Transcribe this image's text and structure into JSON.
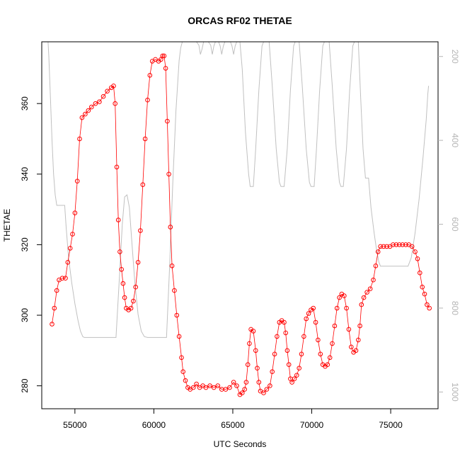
{
  "chart_data": {
    "type": "line",
    "title": "ORCAS RF02 THETAE",
    "xlabel": "UTC Seconds",
    "ylabel": "THETAE",
    "xlim": [
      52900,
      78000
    ],
    "ylim": [
      273.5,
      377.5
    ],
    "y2lim": [
      1040,
      165
    ],
    "y2_reversed": true,
    "x_ticks": [
      55000,
      60000,
      65000,
      70000,
      75000
    ],
    "x_tick_labels": [
      "55000",
      "60000",
      "65000",
      "70000",
      "75000"
    ],
    "y_ticks": [
      280,
      300,
      320,
      340,
      360
    ],
    "y_tick_labels": [
      "280",
      "300",
      "320",
      "340",
      "360"
    ],
    "y2_ticks": [
      200,
      400,
      600,
      800,
      1000
    ],
    "y2_tick_labels": [
      "200",
      "400",
      "600",
      "800",
      "1000"
    ],
    "grid": false,
    "series": [
      {
        "role": "primary",
        "color": "#ff0000",
        "marker": "open-circle",
        "points": [
          [
            53550,
            297.5
          ],
          [
            53700,
            302
          ],
          [
            53850,
            307
          ],
          [
            54000,
            310
          ],
          [
            54200,
            310.5
          ],
          [
            54400,
            310.5
          ],
          [
            54550,
            315
          ],
          [
            54700,
            319
          ],
          [
            54850,
            323
          ],
          [
            55000,
            329
          ],
          [
            55150,
            338
          ],
          [
            55300,
            350
          ],
          [
            55450,
            356
          ],
          [
            55650,
            357
          ],
          [
            55850,
            358
          ],
          [
            56050,
            359
          ],
          [
            56300,
            360
          ],
          [
            56550,
            360.5
          ],
          [
            56800,
            362
          ],
          [
            57050,
            363.5
          ],
          [
            57300,
            364.5
          ],
          [
            57450,
            365
          ],
          [
            57550,
            360
          ],
          [
            57650,
            342
          ],
          [
            57750,
            327
          ],
          [
            57850,
            318
          ],
          [
            57950,
            313
          ],
          [
            58050,
            309
          ],
          [
            58150,
            305
          ],
          [
            58250,
            302
          ],
          [
            58400,
            301.5
          ],
          [
            58550,
            302
          ],
          [
            58700,
            304
          ],
          [
            58850,
            308
          ],
          [
            59000,
            315
          ],
          [
            59150,
            324
          ],
          [
            59300,
            337
          ],
          [
            59450,
            350
          ],
          [
            59600,
            361
          ],
          [
            59750,
            368
          ],
          [
            59900,
            372
          ],
          [
            60100,
            372.5
          ],
          [
            60300,
            372
          ],
          [
            60450,
            372.5
          ],
          [
            60550,
            373.5
          ],
          [
            60650,
            373.5
          ],
          [
            60750,
            370
          ],
          [
            60850,
            355
          ],
          [
            60950,
            340
          ],
          [
            61050,
            325
          ],
          [
            61150,
            314
          ],
          [
            61300,
            307
          ],
          [
            61450,
            300
          ],
          [
            61600,
            294
          ],
          [
            61750,
            288
          ],
          [
            61850,
            284
          ],
          [
            62000,
            281.5
          ],
          [
            62150,
            279.5
          ],
          [
            62300,
            279
          ],
          [
            62500,
            279.5
          ],
          [
            62700,
            280.5
          ],
          [
            62900,
            279.5
          ],
          [
            63100,
            280
          ],
          [
            63300,
            279.5
          ],
          [
            63550,
            280
          ],
          [
            63800,
            279.5
          ],
          [
            64050,
            280
          ],
          [
            64300,
            279
          ],
          [
            64550,
            279
          ],
          [
            64800,
            279.5
          ],
          [
            65050,
            281
          ],
          [
            65250,
            280
          ],
          [
            65450,
            277.5
          ],
          [
            65600,
            278
          ],
          [
            65750,
            279
          ],
          [
            65850,
            281
          ],
          [
            65950,
            286
          ],
          [
            66050,
            292
          ],
          [
            66150,
            296
          ],
          [
            66300,
            295.5
          ],
          [
            66450,
            290
          ],
          [
            66550,
            285
          ],
          [
            66650,
            281
          ],
          [
            66750,
            278.5
          ],
          [
            66950,
            278
          ],
          [
            67150,
            279
          ],
          [
            67350,
            280
          ],
          [
            67500,
            284
          ],
          [
            67650,
            289
          ],
          [
            67800,
            294
          ],
          [
            67950,
            298
          ],
          [
            68100,
            298.5
          ],
          [
            68250,
            298
          ],
          [
            68350,
            295
          ],
          [
            68450,
            290
          ],
          [
            68550,
            286
          ],
          [
            68650,
            282
          ],
          [
            68750,
            281
          ],
          [
            68900,
            282
          ],
          [
            69050,
            283
          ],
          [
            69200,
            285
          ],
          [
            69350,
            289
          ],
          [
            69500,
            294
          ],
          [
            69650,
            299
          ],
          [
            69800,
            300.5
          ],
          [
            69950,
            301.5
          ],
          [
            70100,
            302
          ],
          [
            70250,
            298
          ],
          [
            70400,
            293
          ],
          [
            70550,
            289
          ],
          [
            70700,
            286
          ],
          [
            70850,
            285.5
          ],
          [
            71000,
            286
          ],
          [
            71150,
            288
          ],
          [
            71300,
            292
          ],
          [
            71450,
            297
          ],
          [
            71600,
            302
          ],
          [
            71750,
            305
          ],
          [
            71900,
            306
          ],
          [
            72050,
            305.5
          ],
          [
            72200,
            302
          ],
          [
            72350,
            296
          ],
          [
            72500,
            291
          ],
          [
            72650,
            289.5
          ],
          [
            72800,
            290
          ],
          [
            72950,
            293
          ],
          [
            73050,
            297
          ],
          [
            73150,
            303
          ],
          [
            73300,
            305
          ],
          [
            73500,
            306.5
          ],
          [
            73700,
            307.5
          ],
          [
            73900,
            310
          ],
          [
            74050,
            314
          ],
          [
            74200,
            318
          ],
          [
            74350,
            319.5
          ],
          [
            74550,
            319.5
          ],
          [
            74750,
            319.5
          ],
          [
            74950,
            319.5
          ],
          [
            75150,
            320
          ],
          [
            75350,
            320
          ],
          [
            75550,
            320
          ],
          [
            75750,
            320
          ],
          [
            75950,
            320
          ],
          [
            76150,
            320
          ],
          [
            76350,
            319.5
          ],
          [
            76550,
            318
          ],
          [
            76700,
            316
          ],
          [
            76850,
            312
          ],
          [
            77000,
            308
          ],
          [
            77150,
            306
          ],
          [
            77300,
            303
          ],
          [
            77450,
            302
          ]
        ]
      },
      {
        "role": "secondary-right-axis",
        "color": "#c0c0c0",
        "marker": "none",
        "points": [
          [
            53300,
            165
          ],
          [
            53350,
            200
          ],
          [
            53450,
            300
          ],
          [
            53550,
            400
          ],
          [
            53650,
            480
          ],
          [
            53750,
            530
          ],
          [
            53850,
            555
          ],
          [
            54350,
            555
          ],
          [
            54450,
            610
          ],
          [
            54600,
            680
          ],
          [
            54800,
            740
          ],
          [
            55000,
            790
          ],
          [
            55200,
            830
          ],
          [
            55350,
            855
          ],
          [
            55500,
            868
          ],
          [
            55600,
            870
          ],
          [
            56600,
            870
          ],
          [
            57600,
            870
          ],
          [
            57800,
            740
          ],
          [
            58000,
            600
          ],
          [
            58150,
            535
          ],
          [
            58300,
            530
          ],
          [
            58450,
            560
          ],
          [
            58600,
            640
          ],
          [
            58800,
            740
          ],
          [
            59000,
            815
          ],
          [
            59200,
            855
          ],
          [
            59400,
            868
          ],
          [
            59600,
            870
          ],
          [
            60800,
            870
          ],
          [
            61000,
            700
          ],
          [
            61200,
            500
          ],
          [
            61400,
            330
          ],
          [
            61600,
            210
          ],
          [
            61700,
            180
          ],
          [
            61800,
            165
          ],
          [
            62700,
            165
          ],
          [
            62850,
            173
          ],
          [
            62950,
            195
          ],
          [
            63050,
            182
          ],
          [
            63150,
            165
          ],
          [
            63450,
            165
          ],
          [
            63600,
            173
          ],
          [
            63700,
            195
          ],
          [
            63800,
            175
          ],
          [
            63900,
            165
          ],
          [
            64100,
            165
          ],
          [
            64200,
            175
          ],
          [
            64300,
            195
          ],
          [
            64400,
            175
          ],
          [
            64500,
            165
          ],
          [
            64850,
            165
          ],
          [
            64950,
            175
          ],
          [
            65050,
            195
          ],
          [
            65150,
            175
          ],
          [
            65250,
            165
          ],
          [
            65450,
            165
          ],
          [
            65600,
            230
          ],
          [
            65800,
            380
          ],
          [
            66000,
            480
          ],
          [
            66100,
            510
          ],
          [
            66300,
            510
          ],
          [
            66450,
            420
          ],
          [
            66650,
            280
          ],
          [
            66850,
            175
          ],
          [
            66950,
            165
          ],
          [
            67300,
            165
          ],
          [
            67500,
            270
          ],
          [
            67750,
            420
          ],
          [
            67950,
            500
          ],
          [
            68050,
            510
          ],
          [
            68250,
            510
          ],
          [
            68450,
            420
          ],
          [
            68650,
            280
          ],
          [
            68850,
            175
          ],
          [
            68950,
            165
          ],
          [
            69200,
            165
          ],
          [
            69400,
            270
          ],
          [
            69650,
            420
          ],
          [
            69850,
            500
          ],
          [
            69950,
            510
          ],
          [
            70150,
            510
          ],
          [
            70300,
            420
          ],
          [
            70500,
            280
          ],
          [
            70700,
            175
          ],
          [
            70800,
            165
          ],
          [
            71100,
            165
          ],
          [
            71300,
            270
          ],
          [
            71550,
            420
          ],
          [
            71750,
            500
          ],
          [
            71850,
            510
          ],
          [
            72000,
            510
          ],
          [
            72200,
            420
          ],
          [
            72400,
            280
          ],
          [
            72600,
            175
          ],
          [
            72700,
            165
          ],
          [
            72950,
            165
          ],
          [
            73100,
            300
          ],
          [
            73250,
            420
          ],
          [
            73400,
            490
          ],
          [
            73600,
            490
          ],
          [
            73750,
            560
          ],
          [
            73950,
            620
          ],
          [
            74100,
            660
          ],
          [
            74250,
            690
          ],
          [
            74350,
            700
          ],
          [
            76100,
            700
          ],
          [
            76300,
            680
          ],
          [
            76550,
            620
          ],
          [
            76800,
            540
          ],
          [
            77050,
            440
          ],
          [
            77250,
            350
          ],
          [
            77350,
            290
          ],
          [
            77400,
            270
          ]
        ]
      }
    ]
  }
}
